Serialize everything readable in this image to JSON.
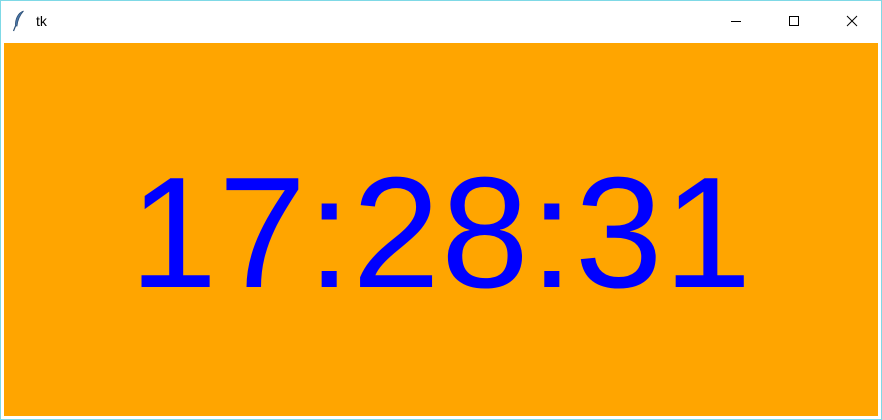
{
  "window": {
    "title": "tk",
    "app_icon": "feather-icon",
    "controls": [
      "minimize-icon",
      "maximize-icon",
      "close-icon"
    ]
  },
  "clock": {
    "time": "17:28:31",
    "background_color": "#ffa500",
    "text_color": "#0000ff"
  }
}
